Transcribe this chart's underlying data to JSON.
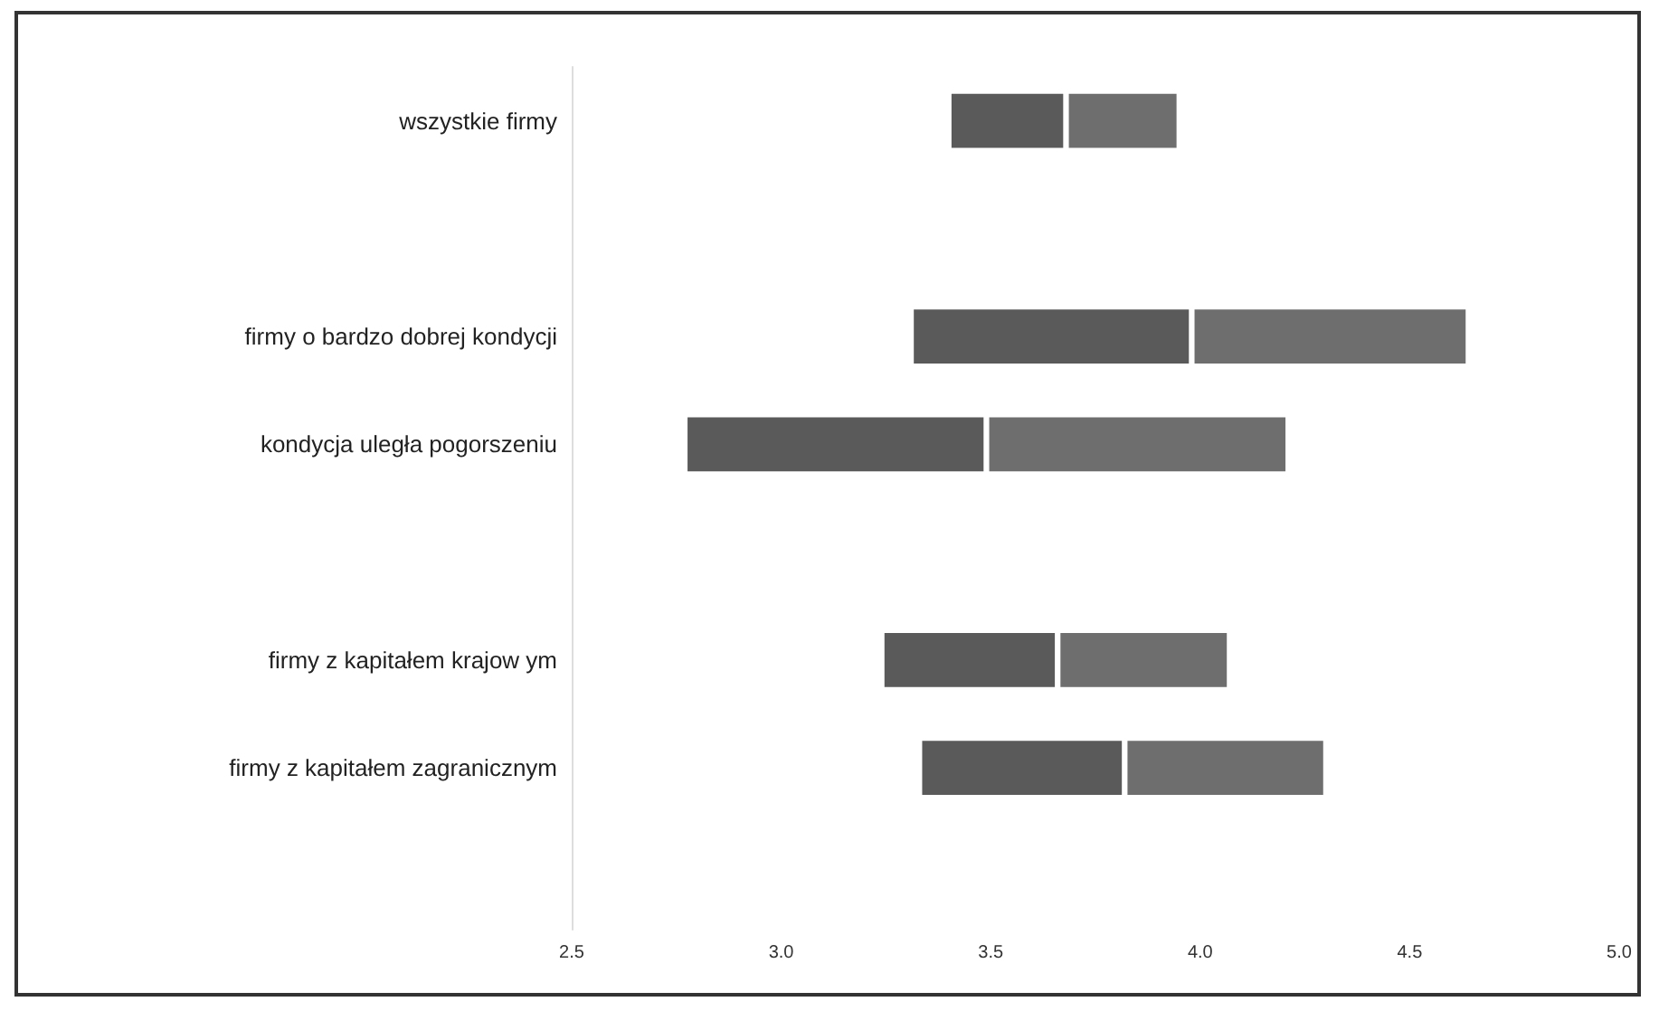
{
  "chart_data": {
    "type": "bar",
    "orientation": "horizontal",
    "categories": [
      "wszystkie firmy",
      null,
      "firmy o bardzo dobrej kondycji",
      "kondycja uległa pogorszeniu",
      null,
      "firmy z kapitałem krajow ym",
      "firmy z kapitałem zagranicznym",
      null
    ],
    "series": [
      {
        "color": "#5a5a5a",
        "base": [
          3.4,
          null,
          3.31,
          2.77,
          null,
          3.24,
          3.33,
          null
        ],
        "values": [
          0.28,
          null,
          0.67,
          0.72,
          null,
          0.42,
          0.49,
          null
        ]
      },
      {
        "color": "#6e6e6e",
        "base": [
          3.68,
          null,
          3.98,
          3.49,
          null,
          3.66,
          3.82,
          null
        ],
        "values": [
          0.27,
          null,
          0.66,
          0.72,
          null,
          0.41,
          0.48,
          null
        ]
      }
    ],
    "xlim": [
      2.5,
      5.0
    ],
    "xticks": [
      2.5,
      {
        "value": 3,
        "label": "3.0"
      },
      3.5,
      {
        "value": 4,
        "label": "4.0"
      },
      4.5,
      {
        "value": 5,
        "label": "5.0"
      }
    ],
    "grid": false
  }
}
